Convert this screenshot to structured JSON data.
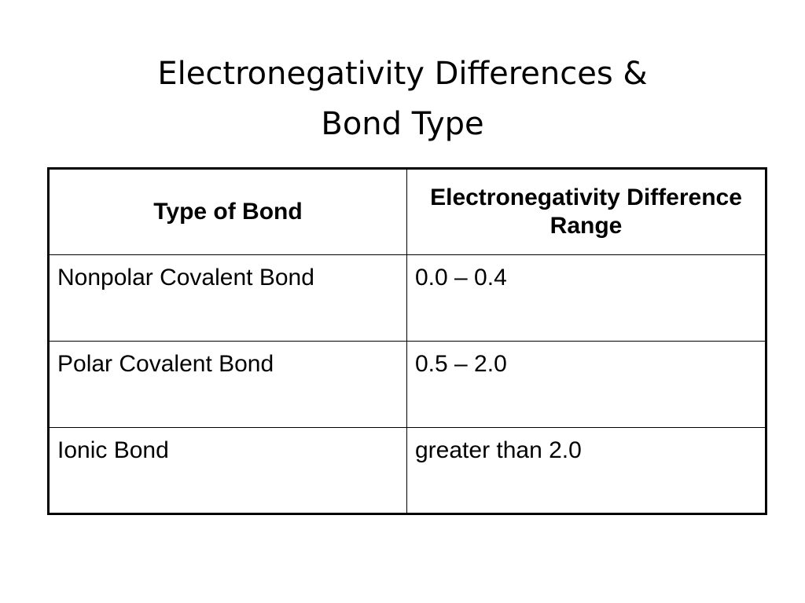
{
  "title_lines": [
    "Electronegativity Differences &",
    "Bond Type"
  ],
  "table": {
    "header": [
      "Type of Bond",
      "Electronegativity Difference Range"
    ],
    "rows": [
      [
        "Nonpolar Covalent Bond",
        "0.0 – 0.4"
      ],
      [
        "Polar Covalent Bond",
        "0.5 – 2.0"
      ],
      [
        "Ionic Bond",
        "greater than 2.0"
      ]
    ]
  }
}
